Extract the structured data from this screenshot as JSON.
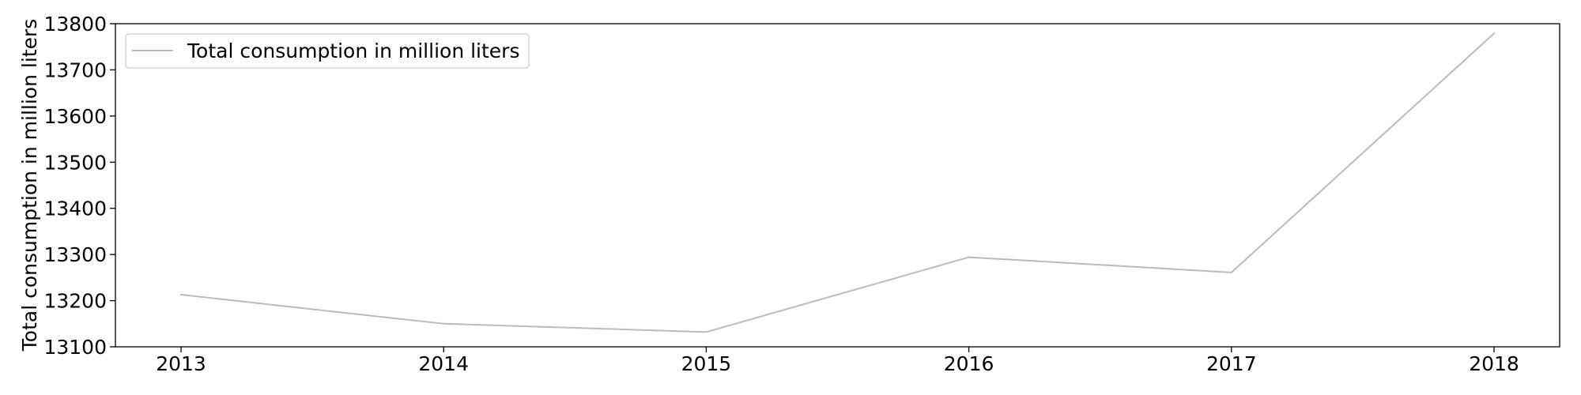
{
  "chart_data": {
    "type": "line",
    "title": "",
    "xlabel": "",
    "ylabel": "Total consumption in million liters",
    "categories": [
      "2013",
      "2014",
      "2015",
      "2016",
      "2017",
      "2018"
    ],
    "series": [
      {
        "name": "Total consumption in million liters",
        "values": [
          13213,
          13150,
          13132,
          13294,
          13261,
          13779
        ],
        "color": "#bbbbbb"
      }
    ],
    "ylim": [
      13100,
      13800
    ],
    "yticks": [
      "13100",
      "13200",
      "13300",
      "13400",
      "13500",
      "13600",
      "13700",
      "13800"
    ],
    "grid": false,
    "legend_position": "top-left"
  }
}
